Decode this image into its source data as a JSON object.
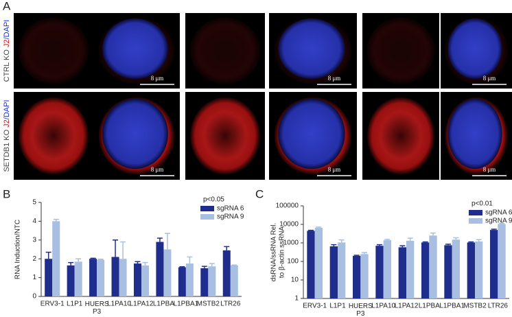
{
  "panel_a": {
    "label": "A",
    "row_labels": [
      [
        "CTRL KO",
        "J2",
        "/DAPI"
      ],
      [
        "SETDB1 KO",
        "J2",
        "/DAPI"
      ]
    ],
    "scale_bar": "8 μm"
  },
  "chart_data": [
    {
      "type": "bar",
      "panel": "B",
      "ylabel": [
        "RNA Induction/NTC"
      ],
      "annotation": "p<0.05",
      "categories": [
        "ERV3-1",
        "L1P1",
        "HUERS P3",
        "L1PA10",
        "L1PA12",
        "L1PBA",
        "L1PBA1",
        "MSTB2",
        "LTR26"
      ],
      "series": [
        {
          "name": "sgRNA 6",
          "color": "#1f2d8c",
          "values": [
            2.0,
            1.65,
            2.0,
            2.1,
            1.75,
            2.9,
            1.55,
            1.5,
            2.45
          ],
          "errors": [
            0.35,
            0.15,
            0.03,
            0.9,
            0.1,
            0.2,
            0.03,
            0.1,
            0.2
          ]
        },
        {
          "name": "sgRNA 9",
          "color": "#a8bfe2",
          "values": [
            4.0,
            1.85,
            1.95,
            2.0,
            1.65,
            2.5,
            1.75,
            1.6,
            1.65
          ],
          "errors": [
            0.1,
            0.15,
            0.03,
            0.9,
            0.15,
            0.85,
            0.35,
            0.15,
            0.02
          ]
        }
      ],
      "ylim": [
        0,
        5
      ],
      "yticks": [
        0,
        1,
        2,
        3,
        4,
        5
      ],
      "log": false
    },
    {
      "type": "bar",
      "panel": "C",
      "ylabel": [
        "dsRNA/ssRNA Rel.",
        "to β-actin ssRNA"
      ],
      "annotation": "p<0.01",
      "categories": [
        "ERV3-1",
        "L1P1",
        "HUERS P3",
        "L1PA10",
        "L1PA12",
        "L1PBA",
        "L1PBA1",
        "MSTB2",
        "LTR26"
      ],
      "series": [
        {
          "name": "sgRNA 6",
          "color": "#1f2d8c",
          "values": [
            4500,
            650,
            200,
            700,
            580,
            1050,
            750,
            1050,
            5000
          ],
          "errors": [
            300,
            150,
            15,
            100,
            120,
            80,
            100,
            80,
            500
          ]
        },
        {
          "name": "sgRNA 9",
          "color": "#a8bfe2",
          "values": [
            6500,
            1050,
            250,
            1400,
            1300,
            2500,
            1500,
            1200,
            10500
          ],
          "errors": [
            600,
            400,
            50,
            150,
            500,
            900,
            400,
            300,
            800
          ]
        }
      ],
      "ylim": [
        1,
        100000
      ],
      "yticks": [
        1,
        10,
        100,
        1000,
        10000,
        100000
      ],
      "log": true
    }
  ]
}
